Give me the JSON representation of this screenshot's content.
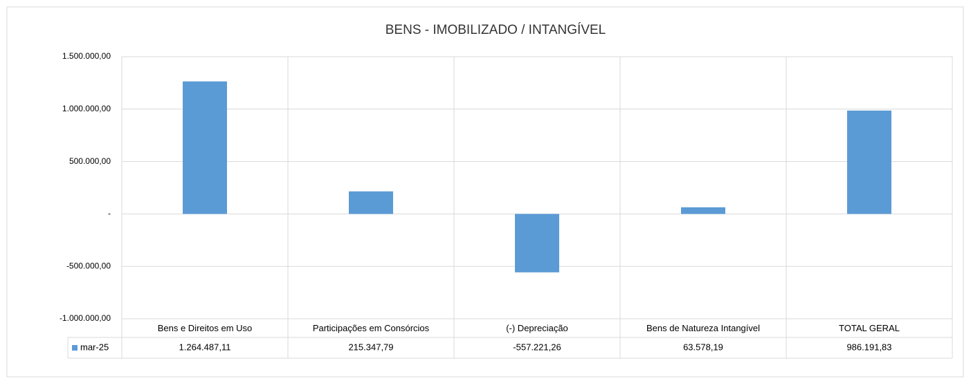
{
  "chart_data": {
    "type": "bar",
    "title": "BENS - IMOBILIZADO / INTANGÍVEL",
    "categories": [
      "Bens e Direitos em Uso",
      "Participações em Consórcios",
      "(-) Depreciação",
      "Bens de Natureza Intangível",
      "TOTAL GERAL"
    ],
    "series": [
      {
        "name": "mar-25",
        "color": "#5b9bd5",
        "values": [
          1264487.11,
          215347.79,
          -557221.26,
          63578.19,
          986191.83
        ],
        "value_labels": [
          "1.264.487,11",
          "215.347,79",
          "-557.221,26",
          "63.578,19",
          "986.191,83"
        ]
      }
    ],
    "ylim": [
      -1000000,
      1500000
    ],
    "yticks": [
      {
        "value": -1000000,
        "label": "-1.000.000,00"
      },
      {
        "value": -500000,
        "label": "-500.000,00"
      },
      {
        "value": 0,
        "label": "-"
      },
      {
        "value": 500000,
        "label": "500.000,00"
      },
      {
        "value": 1000000,
        "label": "1.000.000,00"
      },
      {
        "value": 1500000,
        "label": "1.500.000,00"
      }
    ],
    "grid": true,
    "data_table": true
  }
}
